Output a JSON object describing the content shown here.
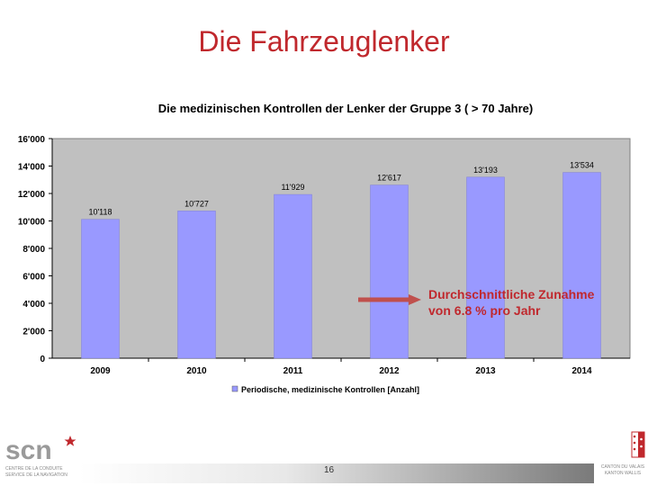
{
  "slide": {
    "title": "Die Fahrzeuglenker",
    "page_number": "16"
  },
  "chart_data": {
    "type": "bar",
    "title": "Die medizinischen Kontrollen der Lenker der Gruppe 3 ( > 70 Jahre)",
    "categories": [
      "2009",
      "2010",
      "2011",
      "2012",
      "2013",
      "2014"
    ],
    "series": [
      {
        "name": "Periodische, medizinische Kontrollen [Anzahl]",
        "values": [
          10118,
          10727,
          11929,
          12617,
          13193,
          13534
        ],
        "data_labels": [
          "10'118",
          "10'727",
          "11'929",
          "12'617",
          "13'193",
          "13'534"
        ],
        "color": "#9999ff"
      }
    ],
    "ylim": [
      0,
      16000
    ],
    "y_ticks": [
      0,
      2000,
      4000,
      6000,
      8000,
      10000,
      12000,
      14000,
      16000
    ],
    "y_tick_labels": [
      "0",
      "2'000",
      "4'000",
      "6'000",
      "8'000",
      "10'000",
      "12'000",
      "14'000",
      "16'000"
    ],
    "grid": false,
    "plot_background": "#c0c0c0",
    "legend_position": "bottom",
    "annotation": "Durchschnittliche Zunahme von 6.8 % pro Jahr",
    "annotation_color": "#c0282d",
    "arrow_color": "#c0504d"
  },
  "logos": {
    "left_text": "scn",
    "left_sub_1": "CENTRE DE LA CONDUITE",
    "left_sub_2": "SERVICE DE LA NAVIGATION",
    "right_sub_1": "CANTON DU VALAIS",
    "right_sub_2": "KANTON WALLIS"
  }
}
